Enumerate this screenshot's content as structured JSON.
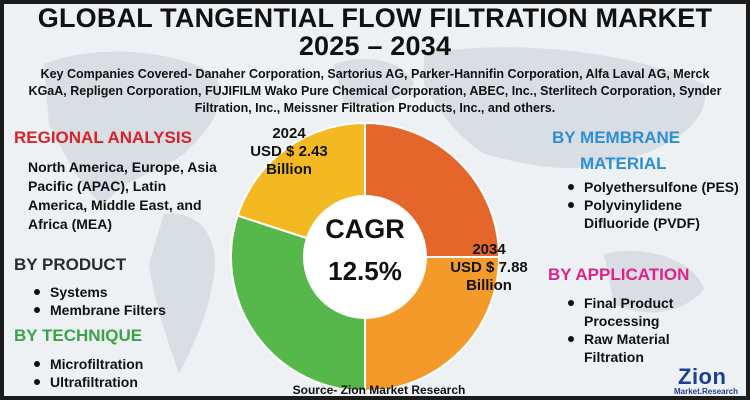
{
  "title_line1": "GLOBAL TANGENTIAL FLOW FILTRATION MARKET",
  "title_line2": "2025 – 2034",
  "key_companies": "Key Companies Covered- Danaher Corporation, Sartorius AG, Parker-Hannifin Corporation, Alfa Laval AG, Merck KGaA, Repligen Corporation, FUJIFILM Wako Pure Chemical Corporation, ABEC, Inc., Sterlitech Corporation, Synder Filtration, Inc., Meissner Filtration Products, Inc., and others.",
  "regional": {
    "heading": "REGIONAL ANALYSIS",
    "text": "North America, Europe, Asia Pacific (APAC), Latin America, Middle East, and Africa (MEA)"
  },
  "product": {
    "heading": "BY PRODUCT",
    "items": [
      "Systems",
      "Membrane Filters"
    ]
  },
  "technique": {
    "heading": "BY TECHNIQUE",
    "items": [
      "Microfiltration",
      "Ultrafiltration"
    ]
  },
  "membrane": {
    "heading_line1": "BY MEMBRANE",
    "heading_line2": "MATERIAL",
    "items": [
      "Polyethersulfone (PES)",
      "Polyvinylidene Difluoride (PVDF)"
    ]
  },
  "application": {
    "heading": "BY APPLICATION",
    "items": [
      "Final Product Processing",
      "Raw Material Filtration"
    ]
  },
  "value_2024": {
    "year": "2024",
    "amount": "USD $ 2.43",
    "unit": "Billion"
  },
  "value_2034": {
    "year": "2034",
    "amount": "USD $ 7.88",
    "unit": "Billion"
  },
  "cagr": {
    "label": "CAGR",
    "value": "12.5%"
  },
  "source": "Source- Zion Market Research",
  "logo": {
    "word": "Zion",
    "sub": "Market.Research"
  },
  "colors": {
    "orange_dark": "#e4662a",
    "orange": "#f39a2b",
    "green": "#56b74a",
    "yellow": "#f2b922",
    "heading_red": "#d8232a",
    "heading_blue": "#2c8fd6",
    "heading_green": "#3aa34a",
    "heading_pink": "#e0218a"
  },
  "segments": [
    {
      "name": "segment-orange-dark",
      "fraction": 0.25,
      "color": "#e4662a"
    },
    {
      "name": "segment-orange",
      "fraction": 0.25,
      "color": "#f39a2b"
    },
    {
      "name": "segment-green",
      "fraction": 0.3,
      "color": "#56b74a"
    },
    {
      "name": "segment-yellow",
      "fraction": 0.2,
      "color": "#f2b922"
    }
  ]
}
